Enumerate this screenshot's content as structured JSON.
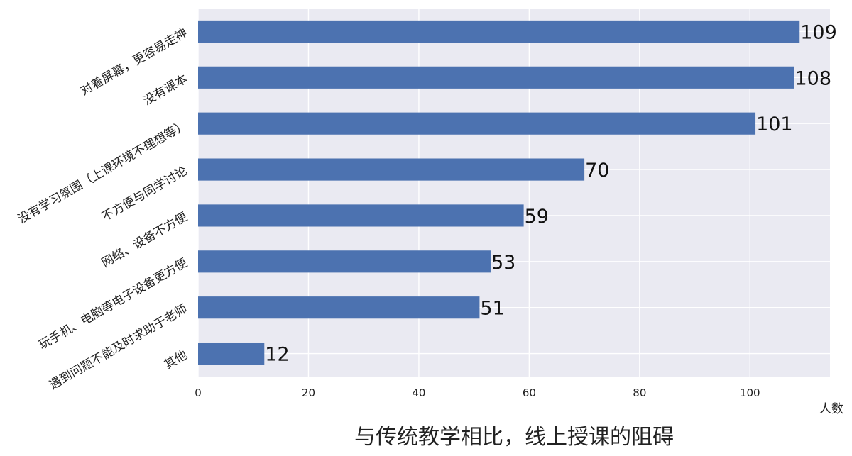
{
  "chart_data": {
    "type": "bar",
    "orientation": "horizontal",
    "title": "与传统教学相比，线上授课的阻碍",
    "xlabel": "人数",
    "ylabel": "",
    "xlim": [
      0,
      114.5
    ],
    "xticks": [
      0,
      20,
      40,
      60,
      80,
      100
    ],
    "grid": true,
    "categories": [
      "对着屏幕，更容易走神",
      "没有课本",
      "没有学习氛围（上课环境不理想等）",
      "不方便与同学讨论",
      "网络、设备不方便",
      "玩手机、电脑等电子设备更方便",
      "遇到问题不能及时求助于老师",
      "其他"
    ],
    "values": [
      109,
      108,
      101,
      70,
      59,
      53,
      51,
      12
    ],
    "colors": {
      "bar": "#4c72b0",
      "plot_background": "#eaeaf2",
      "grid": "#ffffff"
    }
  }
}
